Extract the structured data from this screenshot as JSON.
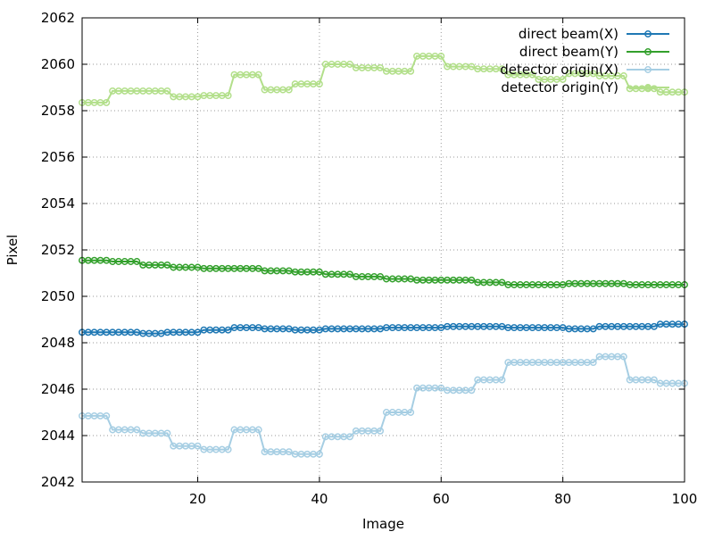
{
  "chart_data": {
    "type": "line",
    "xlabel": "Image",
    "ylabel": "Pixel",
    "xlim": [
      1,
      100
    ],
    "ylim": [
      2042,
      2062
    ],
    "xticks": [
      20,
      40,
      60,
      80,
      100
    ],
    "yticks": [
      2042,
      2044,
      2046,
      2048,
      2050,
      2052,
      2054,
      2056,
      2058,
      2060,
      2062
    ],
    "grid": true,
    "legend": "top-right",
    "markers": "circle",
    "x": [
      1,
      2,
      3,
      4,
      5,
      6,
      7,
      8,
      9,
      10,
      11,
      12,
      13,
      14,
      15,
      16,
      17,
      18,
      19,
      20,
      21,
      22,
      23,
      24,
      25,
      26,
      27,
      28,
      29,
      30,
      31,
      32,
      33,
      34,
      35,
      36,
      37,
      38,
      39,
      40,
      41,
      42,
      43,
      44,
      45,
      46,
      47,
      48,
      49,
      50,
      51,
      52,
      53,
      54,
      55,
      56,
      57,
      58,
      59,
      60,
      61,
      62,
      63,
      64,
      65,
      66,
      67,
      68,
      69,
      70,
      71,
      72,
      73,
      74,
      75,
      76,
      77,
      78,
      79,
      80,
      81,
      82,
      83,
      84,
      85,
      86,
      87,
      88,
      89,
      90,
      91,
      92,
      93,
      94,
      95,
      96,
      97,
      98,
      99,
      100
    ],
    "series": [
      {
        "name": "direct beam(X)",
        "color": "#1f78b4",
        "values": [
          2048.45,
          2048.45,
          2048.45,
          2048.45,
          2048.45,
          2048.45,
          2048.45,
          2048.45,
          2048.45,
          2048.45,
          2048.4,
          2048.4,
          2048.4,
          2048.4,
          2048.45,
          2048.45,
          2048.45,
          2048.45,
          2048.45,
          2048.45,
          2048.55,
          2048.55,
          2048.55,
          2048.55,
          2048.55,
          2048.65,
          2048.65,
          2048.65,
          2048.65,
          2048.65,
          2048.6,
          2048.6,
          2048.6,
          2048.6,
          2048.6,
          2048.55,
          2048.55,
          2048.55,
          2048.55,
          2048.55,
          2048.6,
          2048.6,
          2048.6,
          2048.6,
          2048.6,
          2048.6,
          2048.6,
          2048.6,
          2048.6,
          2048.6,
          2048.65,
          2048.65,
          2048.65,
          2048.65,
          2048.65,
          2048.65,
          2048.65,
          2048.65,
          2048.65,
          2048.65,
          2048.7,
          2048.7,
          2048.7,
          2048.7,
          2048.7,
          2048.7,
          2048.7,
          2048.7,
          2048.7,
          2048.7,
          2048.65,
          2048.65,
          2048.65,
          2048.65,
          2048.65,
          2048.65,
          2048.65,
          2048.65,
          2048.65,
          2048.65,
          2048.6,
          2048.6,
          2048.6,
          2048.6,
          2048.6,
          2048.7,
          2048.7,
          2048.7,
          2048.7,
          2048.7,
          2048.7,
          2048.7,
          2048.7,
          2048.7,
          2048.7,
          2048.8,
          2048.8,
          2048.8,
          2048.8,
          2048.8
        ]
      },
      {
        "name": "direct beam(Y)",
        "color": "#33a02c",
        "values": [
          2051.55,
          2051.55,
          2051.55,
          2051.55,
          2051.55,
          2051.5,
          2051.5,
          2051.5,
          2051.5,
          2051.5,
          2051.35,
          2051.35,
          2051.35,
          2051.35,
          2051.35,
          2051.25,
          2051.25,
          2051.25,
          2051.25,
          2051.25,
          2051.2,
          2051.2,
          2051.2,
          2051.2,
          2051.2,
          2051.2,
          2051.2,
          2051.2,
          2051.2,
          2051.2,
          2051.1,
          2051.1,
          2051.1,
          2051.1,
          2051.1,
          2051.05,
          2051.05,
          2051.05,
          2051.05,
          2051.05,
          2050.95,
          2050.95,
          2050.95,
          2050.95,
          2050.95,
          2050.85,
          2050.85,
          2050.85,
          2050.85,
          2050.85,
          2050.75,
          2050.75,
          2050.75,
          2050.75,
          2050.75,
          2050.7,
          2050.7,
          2050.7,
          2050.7,
          2050.7,
          2050.7,
          2050.7,
          2050.7,
          2050.7,
          2050.7,
          2050.6,
          2050.6,
          2050.6,
          2050.6,
          2050.6,
          2050.5,
          2050.5,
          2050.5,
          2050.5,
          2050.5,
          2050.5,
          2050.5,
          2050.5,
          2050.5,
          2050.5,
          2050.55,
          2050.55,
          2050.55,
          2050.55,
          2050.55,
          2050.55,
          2050.55,
          2050.55,
          2050.55,
          2050.55,
          2050.5,
          2050.5,
          2050.5,
          2050.5,
          2050.5,
          2050.5,
          2050.5,
          2050.5,
          2050.5,
          2050.5
        ]
      },
      {
        "name": "detector origin(X)",
        "color": "#a6cee3",
        "values": [
          2044.85,
          2044.85,
          2044.85,
          2044.85,
          2044.85,
          2044.25,
          2044.25,
          2044.25,
          2044.25,
          2044.25,
          2044.1,
          2044.1,
          2044.1,
          2044.1,
          2044.1,
          2043.55,
          2043.55,
          2043.55,
          2043.55,
          2043.55,
          2043.4,
          2043.4,
          2043.4,
          2043.4,
          2043.4,
          2044.25,
          2044.25,
          2044.25,
          2044.25,
          2044.25,
          2043.3,
          2043.3,
          2043.3,
          2043.3,
          2043.3,
          2043.2,
          2043.2,
          2043.2,
          2043.2,
          2043.2,
          2043.95,
          2043.95,
          2043.95,
          2043.95,
          2043.95,
          2044.2,
          2044.2,
          2044.2,
          2044.2,
          2044.2,
          2045.0,
          2045.0,
          2045.0,
          2045.0,
          2045.0,
          2046.05,
          2046.05,
          2046.05,
          2046.05,
          2046.05,
          2045.95,
          2045.95,
          2045.95,
          2045.95,
          2045.95,
          2046.4,
          2046.4,
          2046.4,
          2046.4,
          2046.4,
          2047.15,
          2047.15,
          2047.15,
          2047.15,
          2047.15,
          2047.15,
          2047.15,
          2047.15,
          2047.15,
          2047.15,
          2047.15,
          2047.15,
          2047.15,
          2047.15,
          2047.15,
          2047.4,
          2047.4,
          2047.4,
          2047.4,
          2047.4,
          2046.4,
          2046.4,
          2046.4,
          2046.4,
          2046.4,
          2046.25,
          2046.25,
          2046.25,
          2046.25,
          2046.25
        ]
      },
      {
        "name": "detector origin(Y)",
        "color": "#b2df8a",
        "values": [
          2058.35,
          2058.35,
          2058.35,
          2058.35,
          2058.35,
          2058.85,
          2058.85,
          2058.85,
          2058.85,
          2058.85,
          2058.85,
          2058.85,
          2058.85,
          2058.85,
          2058.85,
          2058.6,
          2058.6,
          2058.6,
          2058.6,
          2058.6,
          2058.65,
          2058.65,
          2058.65,
          2058.65,
          2058.65,
          2059.55,
          2059.55,
          2059.55,
          2059.55,
          2059.55,
          2058.9,
          2058.9,
          2058.9,
          2058.9,
          2058.9,
          2059.15,
          2059.15,
          2059.15,
          2059.15,
          2059.15,
          2060.0,
          2060.0,
          2060.0,
          2060.0,
          2060.0,
          2059.85,
          2059.85,
          2059.85,
          2059.85,
          2059.85,
          2059.7,
          2059.7,
          2059.7,
          2059.7,
          2059.7,
          2060.35,
          2060.35,
          2060.35,
          2060.35,
          2060.35,
          2059.9,
          2059.9,
          2059.9,
          2059.9,
          2059.9,
          2059.8,
          2059.8,
          2059.8,
          2059.8,
          2059.8,
          2059.55,
          2059.55,
          2059.55,
          2059.55,
          2059.55,
          2059.35,
          2059.35,
          2059.35,
          2059.35,
          2059.35,
          2059.6,
          2059.6,
          2059.6,
          2059.6,
          2059.6,
          2059.5,
          2059.5,
          2059.5,
          2059.5,
          2059.5,
          2058.95,
          2058.95,
          2058.95,
          2058.95,
          2058.95,
          2058.8,
          2058.8,
          2058.8,
          2058.8,
          2058.8
        ]
      }
    ]
  }
}
